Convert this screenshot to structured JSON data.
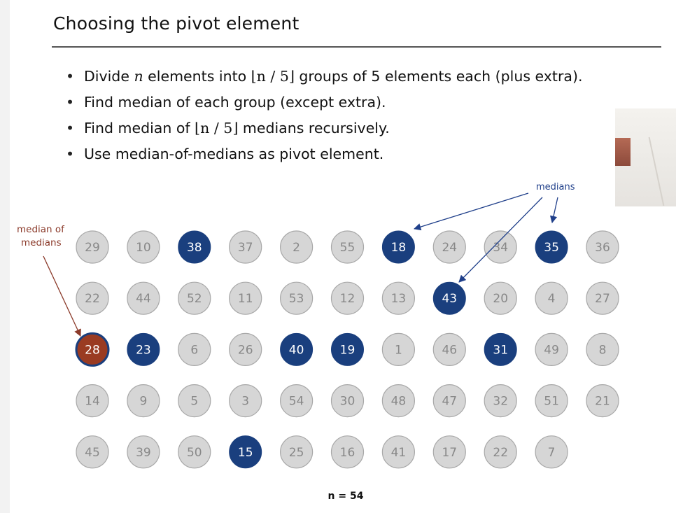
{
  "slide": {
    "title": "Choosing the pivot element",
    "bullets": [
      {
        "pre": "Divide ",
        "var": "n",
        "mid": " elements into ",
        "floor": "⌊n / 5⌋",
        "post": " groups of 5 elements each (plus extra)."
      },
      {
        "pre": "Find median of each group (except extra).",
        "var": "",
        "mid": "",
        "floor": "",
        "post": ""
      },
      {
        "pre": "Find median of ",
        "var": "",
        "mid": "",
        "floor": "⌊n / 5⌋",
        "post": " medians recursively."
      },
      {
        "pre": "Use median-of-medians as pivot element.",
        "var": "",
        "mid": "",
        "floor": "",
        "post": ""
      }
    ]
  },
  "diagram": {
    "medians_label": "medians",
    "median_of_medians_label": [
      "median of",
      "medians"
    ],
    "n_label": "n = 54",
    "colors": {
      "plain_fill": "#d6d6d6",
      "plain_stroke": "#a8a8a8",
      "plain_text": "#888888",
      "median_fill": "#1a3f7e",
      "median_text": "#ffffff",
      "mom_fill": "#9a3b22",
      "mom_ring": "#1a3f7e",
      "arrow_blue": "#1f3f8a",
      "arrow_red": "#8b3a2a"
    },
    "grid": [
      [
        {
          "v": "29",
          "t": "plain"
        },
        {
          "v": "10",
          "t": "plain"
        },
        {
          "v": "38",
          "t": "median"
        },
        {
          "v": "37",
          "t": "plain"
        },
        {
          "v": "2",
          "t": "plain"
        },
        {
          "v": "55",
          "t": "plain"
        },
        {
          "v": "18",
          "t": "median"
        },
        {
          "v": "24",
          "t": "plain"
        },
        {
          "v": "34",
          "t": "plain"
        },
        {
          "v": "35",
          "t": "median"
        },
        {
          "v": "36",
          "t": "plain"
        }
      ],
      [
        {
          "v": "22",
          "t": "plain"
        },
        {
          "v": "44",
          "t": "plain"
        },
        {
          "v": "52",
          "t": "plain"
        },
        {
          "v": "11",
          "t": "plain"
        },
        {
          "v": "53",
          "t": "plain"
        },
        {
          "v": "12",
          "t": "plain"
        },
        {
          "v": "13",
          "t": "plain"
        },
        {
          "v": "43",
          "t": "median"
        },
        {
          "v": "20",
          "t": "plain"
        },
        {
          "v": "4",
          "t": "plain"
        },
        {
          "v": "27",
          "t": "plain"
        }
      ],
      [
        {
          "v": "28",
          "t": "mom"
        },
        {
          "v": "23",
          "t": "median"
        },
        {
          "v": "6",
          "t": "plain"
        },
        {
          "v": "26",
          "t": "plain"
        },
        {
          "v": "40",
          "t": "median"
        },
        {
          "v": "19",
          "t": "median"
        },
        {
          "v": "1",
          "t": "plain"
        },
        {
          "v": "46",
          "t": "plain"
        },
        {
          "v": "31",
          "t": "median"
        },
        {
          "v": "49",
          "t": "plain"
        },
        {
          "v": "8",
          "t": "plain"
        }
      ],
      [
        {
          "v": "14",
          "t": "plain"
        },
        {
          "v": "9",
          "t": "plain"
        },
        {
          "v": "5",
          "t": "plain"
        },
        {
          "v": "3",
          "t": "plain"
        },
        {
          "v": "54",
          "t": "plain"
        },
        {
          "v": "30",
          "t": "plain"
        },
        {
          "v": "48",
          "t": "plain"
        },
        {
          "v": "47",
          "t": "plain"
        },
        {
          "v": "32",
          "t": "plain"
        },
        {
          "v": "51",
          "t": "plain"
        },
        {
          "v": "21",
          "t": "plain"
        }
      ],
      [
        {
          "v": "45",
          "t": "plain"
        },
        {
          "v": "39",
          "t": "plain"
        },
        {
          "v": "50",
          "t": "plain"
        },
        {
          "v": "15",
          "t": "median"
        },
        {
          "v": "25",
          "t": "plain"
        },
        {
          "v": "16",
          "t": "plain"
        },
        {
          "v": "41",
          "t": "plain"
        },
        {
          "v": "17",
          "t": "plain"
        },
        {
          "v": "22",
          "t": "plain"
        },
        {
          "v": "7",
          "t": "plain"
        }
      ]
    ]
  }
}
